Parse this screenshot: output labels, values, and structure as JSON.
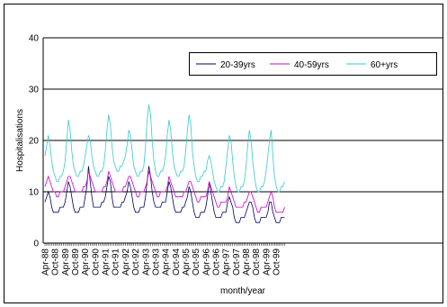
{
  "chart_data": {
    "type": "line",
    "x_label": "month/year",
    "y_label": "Hospitalisations",
    "categories": [
      "Apr-88",
      null,
      null,
      null,
      null,
      null,
      "Oct-88",
      null,
      null,
      null,
      null,
      null,
      "Apr-89",
      null,
      null,
      null,
      null,
      null,
      "Oct-89",
      null,
      null,
      null,
      null,
      null,
      "Apr-90",
      null,
      null,
      null,
      null,
      null,
      "Oct-90",
      null,
      null,
      null,
      null,
      null,
      "Apr-91",
      null,
      null,
      null,
      null,
      null,
      "Oct-91",
      null,
      null,
      null,
      null,
      null,
      "Apr-92",
      null,
      null,
      null,
      null,
      null,
      "Oct-92",
      null,
      null,
      null,
      null,
      null,
      "Apr-93",
      null,
      null,
      null,
      null,
      null,
      "Oct-93",
      null,
      null,
      null,
      null,
      null,
      "Apr-94",
      null,
      null,
      null,
      null,
      null,
      "Oct-94",
      null,
      null,
      null,
      null,
      null,
      "Apr-95",
      null,
      null,
      null,
      null,
      null,
      "Oct-95",
      null,
      null,
      null,
      null,
      null,
      "Apr-96",
      null,
      null,
      null,
      null,
      null,
      "Oct-96",
      null,
      null,
      null,
      null,
      null,
      "Apr-97",
      null,
      null,
      null,
      null,
      null,
      "Oct-97",
      null,
      null,
      null,
      null,
      null,
      "Apr-98",
      null,
      null,
      null,
      null,
      null,
      "Oct-98",
      null,
      null,
      null,
      null,
      null,
      "Apr-99",
      null,
      null,
      null,
      null,
      null,
      "Oct-99",
      null,
      null,
      null,
      null,
      null
    ],
    "series": [
      {
        "name": "20-39yrs",
        "color": "#000066",
        "values": [
          8,
          9,
          10,
          9,
          7,
          6,
          6,
          6,
          6,
          7,
          7,
          7,
          8,
          10,
          12,
          11,
          9,
          7,
          6,
          6,
          6,
          7,
          7,
          7,
          9,
          11,
          15,
          12,
          9,
          7,
          7,
          7,
          7,
          7,
          8,
          8,
          9,
          11,
          13,
          12,
          9,
          7,
          7,
          7,
          7,
          7,
          8,
          8,
          9,
          10,
          12,
          11,
          9,
          7,
          6,
          6,
          6,
          7,
          7,
          7,
          9,
          12,
          15,
          13,
          10,
          8,
          7,
          7,
          7,
          7,
          8,
          8,
          8,
          10,
          12,
          11,
          9,
          7,
          6,
          6,
          6,
          6,
          7,
          7,
          8,
          9,
          11,
          10,
          8,
          6,
          5,
          5,
          5,
          6,
          6,
          6,
          7,
          9,
          12,
          10,
          8,
          6,
          5,
          5,
          5,
          5,
          6,
          6,
          6,
          8,
          9,
          8,
          7,
          5,
          4,
          4,
          4,
          5,
          5,
          5,
          6,
          7,
          8,
          8,
          7,
          5,
          4,
          4,
          4,
          5,
          5,
          5,
          5,
          6,
          8,
          8,
          6,
          5,
          4,
          4,
          4,
          5,
          5,
          5
        ]
      },
      {
        "name": "40-59yrs",
        "color": "#cc00cc",
        "values": [
          11,
          12,
          13,
          12,
          11,
          10,
          10,
          9,
          9,
          10,
          10,
          10,
          11,
          12,
          13,
          13,
          12,
          11,
          10,
          10,
          10,
          10,
          10,
          11,
          11,
          12,
          14,
          13,
          12,
          11,
          10,
          10,
          10,
          10,
          10,
          11,
          11,
          12,
          14,
          13,
          12,
          11,
          10,
          10,
          10,
          10,
          10,
          11,
          11,
          12,
          13,
          13,
          12,
          11,
          10,
          9,
          9,
          10,
          10,
          10,
          11,
          12,
          14,
          13,
          12,
          11,
          10,
          9,
          9,
          10,
          10,
          10,
          10,
          11,
          13,
          12,
          11,
          10,
          9,
          9,
          9,
          9,
          9,
          10,
          10,
          11,
          12,
          12,
          11,
          10,
          9,
          8,
          8,
          9,
          9,
          9,
          9,
          10,
          12,
          11,
          10,
          9,
          8,
          7,
          7,
          8,
          8,
          8,
          8,
          9,
          11,
          10,
          9,
          8,
          7,
          7,
          7,
          7,
          7,
          8,
          8,
          9,
          10,
          10,
          9,
          8,
          7,
          6,
          6,
          7,
          7,
          7,
          7,
          8,
          9,
          10,
          9,
          7,
          6,
          6,
          6,
          6,
          6,
          7
        ]
      },
      {
        "name": "60+yrs",
        "color": "#33cccc",
        "values": [
          17,
          19,
          21,
          19,
          16,
          14,
          13,
          12,
          12,
          13,
          13,
          14,
          16,
          20,
          24,
          22,
          18,
          15,
          14,
          13,
          13,
          14,
          14,
          15,
          17,
          19,
          21,
          20,
          17,
          15,
          14,
          13,
          13,
          14,
          14,
          15,
          18,
          22,
          25,
          23,
          19,
          16,
          15,
          14,
          14,
          15,
          15,
          16,
          17,
          19,
          22,
          21,
          18,
          15,
          14,
          13,
          13,
          14,
          14,
          15,
          19,
          24,
          27,
          25,
          20,
          16,
          14,
          13,
          13,
          14,
          14,
          15,
          17,
          21,
          24,
          22,
          18,
          15,
          14,
          13,
          13,
          14,
          14,
          15,
          18,
          22,
          25,
          23,
          18,
          15,
          13,
          12,
          12,
          13,
          13,
          14,
          14,
          16,
          17,
          16,
          14,
          12,
          11,
          10,
          10,
          11,
          11,
          12,
          15,
          18,
          21,
          20,
          16,
          13,
          11,
          10,
          10,
          11,
          11,
          12,
          15,
          19,
          22,
          20,
          16,
          13,
          11,
          10,
          10,
          11,
          11,
          12,
          14,
          17,
          20,
          22,
          17,
          13,
          11,
          10,
          10,
          11,
          11,
          12
        ]
      }
    ],
    "ylim": [
      0,
      40
    ],
    "yticks": [
      0,
      10,
      20,
      30,
      40
    ],
    "grid": true
  }
}
